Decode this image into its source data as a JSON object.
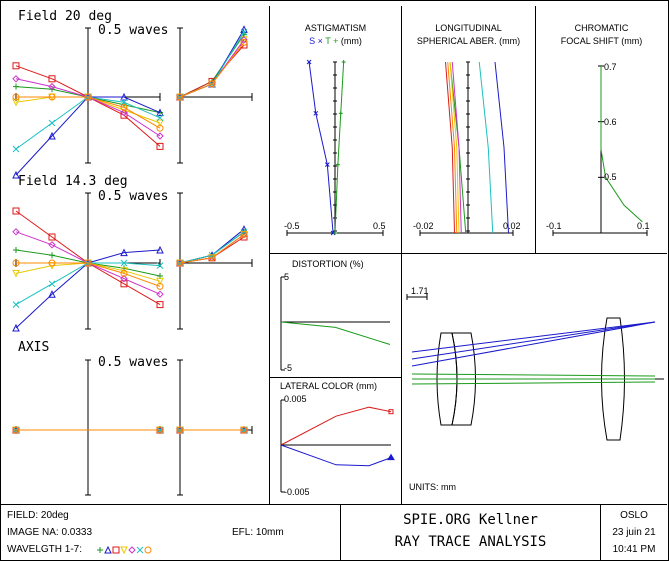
{
  "window_title": "SPIE.ORG Kellner - RAY TRACE ANALYSIS",
  "colors": {
    "blue": "#1a1acc",
    "green": "#1a9a1a",
    "red": "#dd1a1a",
    "magenta": "#cc33cc",
    "yellow": "#e8c800",
    "cyan": "#1ac0c0",
    "orange": "#ff8800"
  },
  "ray_fans": [
    {
      "title": "Field 20 deg",
      "scale_label": "0.5 waves"
    },
    {
      "title": "Field 14.3 deg",
      "scale_label": "0.5 waves"
    },
    {
      "title": "AXIS",
      "scale_label": "0.5 waves"
    }
  ],
  "astigmatism": {
    "title_line1": "ASTIGMATISM",
    "title_line2": "S × T + (mm)",
    "s_label": "S",
    "x_label": "×",
    "t_label": "T",
    "plus_label": "+",
    "unit_label": "(mm)",
    "tick_left": "-0.5",
    "tick_right": "0.5"
  },
  "spherical": {
    "title_line1": "LONGITUDINAL",
    "title_line2": "SPHERICAL ABER. (mm)",
    "tick_left": "-0.02",
    "tick_right": "0.02"
  },
  "chromatic": {
    "title_line1": "CHROMATIC",
    "title_line2": "FOCAL SHIFT (mm)",
    "tick_left": "-0.1",
    "tick_right": "0.1",
    "y_ticks": [
      "0.7",
      "0.6",
      "0.5"
    ]
  },
  "distortion": {
    "title": "DISTORTION (%)",
    "tick_top": "5",
    "tick_bottom": "-5"
  },
  "lateral_color": {
    "title": "LATERAL COLOR (mm)",
    "tick_top": "0.005",
    "tick_bottom": "-0.005"
  },
  "layout_plot": {
    "scale_label": "1.71",
    "units_label": "UNITS: mm"
  },
  "footer": {
    "field": "FIELD: 20deg",
    "image_na": "IMAGE NA: 0.0333",
    "efl": "EFL: 10mm",
    "wavelength_label": "WAVELGTH 1-7:",
    "title1": "SPIE.ORG Kellner",
    "title2": "RAY TRACE ANALYSIS",
    "program": "OSLO",
    "date": "23 juin 21",
    "time": "10:41 PM"
  },
  "chart_data": [
    {
      "type": "line",
      "title": "Field 20 deg ray fan",
      "ylabel": "waves",
      "scale": "0.5 waves",
      "series": [
        {
          "name": "wl1 green",
          "tangential": [
            [
              -1,
              0.04
            ],
            [
              -0.5,
              0.03
            ],
            [
              0,
              0
            ],
            [
              0.5,
              -0.03
            ],
            [
              1,
              -0.06
            ]
          ],
          "sagittal": [
            [
              0,
              0
            ],
            [
              0.5,
              0.06
            ],
            [
              1,
              0.24
            ]
          ]
        },
        {
          "name": "wl2 blue",
          "tangential": [
            [
              -1,
              -0.3
            ],
            [
              -0.5,
              -0.15
            ],
            [
              0,
              0
            ],
            [
              0.5,
              0
            ],
            [
              1,
              -0.06
            ]
          ],
          "sagittal": [
            [
              0,
              0
            ],
            [
              0.5,
              0.05
            ],
            [
              1,
              0.26
            ]
          ]
        },
        {
          "name": "wl3 red",
          "tangential": [
            [
              -1,
              0.12
            ],
            [
              -0.5,
              0.07
            ],
            [
              0,
              0
            ],
            [
              0.5,
              -0.07
            ],
            [
              1,
              -0.19
            ]
          ],
          "sagittal": [
            [
              0,
              0
            ],
            [
              0.5,
              0.06
            ],
            [
              1,
              0.2
            ]
          ]
        },
        {
          "name": "wl4 yellow",
          "tangential": [
            [
              -1,
              -0.02
            ],
            [
              -0.5,
              0
            ],
            [
              0,
              0
            ],
            [
              0.5,
              -0.05
            ],
            [
              1,
              -0.1
            ]
          ],
          "sagittal": [
            [
              0,
              0
            ],
            [
              0.5,
              0.05
            ],
            [
              1,
              0.22
            ]
          ]
        },
        {
          "name": "wl5 magenta",
          "tangential": [
            [
              -1,
              0.07
            ],
            [
              -0.5,
              0.04
            ],
            [
              0,
              0
            ],
            [
              0.5,
              -0.06
            ],
            [
              1,
              -0.15
            ]
          ],
          "sagittal": [
            [
              0,
              0
            ],
            [
              0.5,
              0.05
            ],
            [
              1,
              0.22
            ]
          ]
        },
        {
          "name": "wl6 cyan",
          "tangential": [
            [
              -1,
              -0.2
            ],
            [
              -0.5,
              -0.1
            ],
            [
              0,
              0
            ],
            [
              0.5,
              -0.02
            ],
            [
              1,
              -0.08
            ]
          ],
          "sagittal": [
            [
              0,
              0
            ],
            [
              0.5,
              0.05
            ],
            [
              1,
              0.25
            ]
          ]
        },
        {
          "name": "wl7 orange",
          "tangential": [
            [
              -1,
              0.0
            ],
            [
              -0.5,
              0.0
            ],
            [
              0,
              0
            ],
            [
              0.5,
              -0.04
            ],
            [
              1,
              -0.12
            ]
          ],
          "sagittal": [
            [
              0,
              0
            ],
            [
              0.5,
              0.05
            ],
            [
              1,
              0.21
            ]
          ]
        }
      ]
    },
    {
      "type": "line",
      "title": "Field 14.3 deg ray fan",
      "ylabel": "waves",
      "scale": "0.5 waves",
      "series": [
        {
          "name": "wl1 green",
          "tangential": [
            [
              -1,
              0.05
            ],
            [
              -0.5,
              0.03
            ],
            [
              0,
              0
            ],
            [
              0.5,
              -0.02
            ],
            [
              1,
              -0.05
            ]
          ],
          "sagittal": [
            [
              0,
              0
            ],
            [
              0.5,
              0.03
            ],
            [
              1,
              0.12
            ]
          ]
        },
        {
          "name": "wl2 blue",
          "tangential": [
            [
              -1,
              -0.25
            ],
            [
              -0.5,
              -0.12
            ],
            [
              0,
              0
            ],
            [
              0.5,
              0.04
            ],
            [
              1,
              0.05
            ]
          ],
          "sagittal": [
            [
              0,
              0
            ],
            [
              0.5,
              0.03
            ],
            [
              1,
              0.13
            ]
          ]
        },
        {
          "name": "wl3 red",
          "tangential": [
            [
              -1,
              0.2
            ],
            [
              -0.5,
              0.1
            ],
            [
              0,
              0
            ],
            [
              0.5,
              -0.08
            ],
            [
              1,
              -0.16
            ]
          ],
          "sagittal": [
            [
              0,
              0
            ],
            [
              0.5,
              0.02
            ],
            [
              1,
              0.1
            ]
          ]
        },
        {
          "name": "wl4 yellow",
          "tangential": [
            [
              -1,
              -0.04
            ],
            [
              -0.5,
              -0.01
            ],
            [
              0,
              0
            ],
            [
              0.5,
              -0.03
            ],
            [
              1,
              -0.07
            ]
          ],
          "sagittal": [
            [
              0,
              0
            ],
            [
              0.5,
              0.02
            ],
            [
              1,
              0.11
            ]
          ]
        },
        {
          "name": "wl5 magenta",
          "tangential": [
            [
              -1,
              0.12
            ],
            [
              -0.5,
              0.07
            ],
            [
              0,
              0
            ],
            [
              0.5,
              -0.06
            ],
            [
              1,
              -0.12
            ]
          ],
          "sagittal": [
            [
              0,
              0
            ],
            [
              0.5,
              0.02
            ],
            [
              1,
              0.11
            ]
          ]
        },
        {
          "name": "wl6 cyan",
          "tangential": [
            [
              -1,
              -0.16
            ],
            [
              -0.5,
              -0.08
            ],
            [
              0,
              0
            ],
            [
              0.5,
              0.0
            ],
            [
              1,
              -0.01
            ]
          ],
          "sagittal": [
            [
              0,
              0
            ],
            [
              0.5,
              0.03
            ],
            [
              1,
              0.12
            ]
          ]
        },
        {
          "name": "wl7 orange",
          "tangential": [
            [
              -1,
              0.0
            ],
            [
              -0.5,
              0.0
            ],
            [
              0,
              0
            ],
            [
              0.5,
              -0.04
            ],
            [
              1,
              -0.09
            ]
          ],
          "sagittal": [
            [
              0,
              0
            ],
            [
              0.5,
              0.02
            ],
            [
              1,
              0.11
            ]
          ]
        }
      ]
    },
    {
      "type": "line",
      "title": "AXIS ray fan",
      "ylabel": "waves",
      "scale": "0.5 waves",
      "series": [
        {
          "name": "all",
          "tangential": [
            [
              -1,
              0
            ],
            [
              1,
              0
            ]
          ],
          "sagittal": [
            [
              0,
              0
            ],
            [
              1,
              0
            ]
          ]
        }
      ]
    },
    {
      "type": "line",
      "title": "ASTIGMATISM",
      "xlabel": "mm",
      "xlim": [
        -0.5,
        0.5
      ],
      "series": [
        {
          "name": "S",
          "points": [
            [
              -0.27,
              1
            ],
            [
              -0.2,
              0.7
            ],
            [
              -0.08,
              0.4
            ],
            [
              -0.02,
              0
            ]
          ]
        },
        {
          "name": "T",
          "points": [
            [
              0.09,
              1
            ],
            [
              0.06,
              0.7
            ],
            [
              0.03,
              0.4
            ],
            [
              0,
              0
            ]
          ]
        }
      ]
    },
    {
      "type": "line",
      "title": "LONGITUDINAL SPHERICAL ABER.",
      "xlabel": "mm",
      "xlim": [
        -0.02,
        0.02
      ],
      "series": [
        {
          "name": "wl1",
          "points": [
            [
              -0.008,
              1
            ],
            [
              -0.004,
              0.5
            ],
            [
              -0.001,
              0
            ]
          ]
        },
        {
          "name": "wl2",
          "points": [
            [
              0.012,
              1
            ],
            [
              0.016,
              0.5
            ],
            [
              0.018,
              0
            ]
          ]
        },
        {
          "name": "wl3",
          "points": [
            [
              -0.01,
              1
            ],
            [
              -0.007,
              0.5
            ],
            [
              -0.006,
              0
            ]
          ]
        },
        {
          "name": "wl6",
          "points": [
            [
              0.005,
              1
            ],
            [
              0.009,
              0.5
            ],
            [
              0.011,
              0
            ]
          ]
        }
      ]
    },
    {
      "type": "line",
      "title": "CHROMATIC FOCAL SHIFT",
      "xlabel": "mm",
      "xlim": [
        -0.1,
        0.1
      ],
      "ylim": [
        0.4,
        0.7
      ],
      "series": [
        {
          "name": "focal shift",
          "points": [
            [
              0,
              0.7
            ],
            [
              0,
              0.55
            ],
            [
              0.01,
              0.5
            ],
            [
              0.05,
              0.45
            ],
            [
              0.09,
              0.42
            ]
          ]
        }
      ]
    },
    {
      "type": "line",
      "title": "DISTORTION (%)",
      "ylim": [
        -5,
        5
      ],
      "series": [
        {
          "name": "distortion",
          "points": [
            [
              0,
              0
            ],
            [
              0.5,
              -0.6
            ],
            [
              1,
              -2.5
            ]
          ]
        }
      ]
    },
    {
      "type": "line",
      "title": "LATERAL COLOR (mm)",
      "ylim": [
        -0.005,
        0.005
      ],
      "series": [
        {
          "name": "red",
          "points": [
            [
              0,
              0
            ],
            [
              0.5,
              0.0032
            ],
            [
              0.8,
              0.0042
            ],
            [
              1,
              0.0037
            ]
          ]
        },
        {
          "name": "blue",
          "points": [
            [
              0,
              0
            ],
            [
              0.5,
              -0.0022
            ],
            [
              0.8,
              -0.0023
            ],
            [
              1,
              -0.0014
            ]
          ]
        }
      ]
    }
  ]
}
